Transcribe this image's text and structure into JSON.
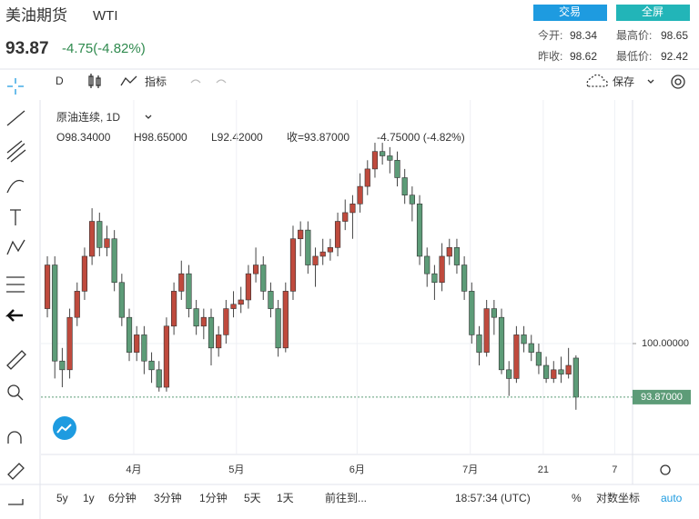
{
  "header": {
    "title": "美油期货",
    "symbol": "WTI",
    "price": "93.87",
    "change": "-4.75(-4.82%)",
    "buttons": [
      "交易",
      "全屏"
    ],
    "stats": [
      [
        "今开:",
        "98.34"
      ],
      [
        "最高价:",
        "98.65"
      ],
      [
        "昨收:",
        "98.62"
      ],
      [
        "最低价:",
        "92.42"
      ]
    ]
  },
  "toolbar": {
    "interval": "D",
    "indicators": "指标",
    "save": "保存"
  },
  "legend": {
    "name": "原油连续, 1D",
    "ohlc": [
      "O98.34000",
      "H98.65000",
      "L92.42000",
      "收=93.87000",
      "-4.75000 (-4.82%)"
    ]
  },
  "bottom": {
    "ranges": [
      "5y",
      "1y",
      "6分钟",
      "3分钟",
      "1分钟",
      "5天",
      "1天"
    ],
    "goto": "前往到...",
    "time": "18:57:34 (UTC)",
    "percent": "%",
    "log": "对数坐标",
    "auto": "auto"
  },
  "chart_data": {
    "type": "candlestick",
    "up_color": "#bf4a3d",
    "down_color": "#5d9c78",
    "grid": true,
    "xlim": [
      -0.86,
      78.6
    ],
    "ylim": [
      87.3,
      127.9
    ],
    "xticks": [
      {
        "value": 11.6,
        "label": "4月"
      },
      {
        "value": 25.4,
        "label": "5月"
      },
      {
        "value": 41.6,
        "label": "6月"
      },
      {
        "value": 56.8,
        "label": "7月"
      },
      {
        "value": 66.6,
        "label": "21"
      },
      {
        "value": 76.2,
        "label": "7"
      }
    ],
    "yticks": [
      {
        "value": 100,
        "label": "100.00000"
      }
    ],
    "last_price": {
      "value": 93.87,
      "label": "93.87000"
    },
    "open": [
      104,
      109,
      98,
      97,
      103,
      106,
      110,
      114,
      111,
      112,
      107,
      103,
      99,
      101,
      98,
      97,
      95,
      102,
      106,
      108,
      104,
      102,
      103,
      99.5,
      101,
      104,
      104.5,
      105,
      108,
      109,
      106,
      104,
      99.5,
      106,
      112,
      113,
      109,
      110,
      110.5,
      111,
      114,
      115,
      116,
      118,
      120,
      122,
      121.5,
      121,
      119,
      117,
      116,
      110,
      108,
      107,
      110,
      111,
      109,
      106,
      101,
      99,
      104,
      103,
      97,
      96,
      101,
      100,
      99,
      97.5,
      96,
      97,
      96.5,
      98.34
    ],
    "high": [
      110,
      110,
      99.5,
      104,
      107,
      111,
      115.5,
      115,
      113.5,
      113,
      108,
      104,
      102,
      102,
      99,
      98,
      103,
      107,
      109.5,
      109,
      105,
      104,
      104,
      102,
      105,
      106,
      106.5,
      109,
      111,
      110,
      107,
      105,
      107,
      113.5,
      114,
      114,
      111,
      112,
      112,
      115,
      116.5,
      117,
      119.5,
      121,
      123,
      123,
      122.5,
      122,
      120,
      118,
      117,
      111,
      109,
      111.5,
      112,
      112,
      110,
      107,
      102,
      105,
      105,
      104,
      98,
      102,
      102,
      101,
      100,
      98.5,
      98,
      98.5,
      99.5,
      98.65
    ],
    "low": [
      103,
      96,
      95,
      96,
      102,
      105,
      109,
      110,
      110,
      106,
      102,
      98,
      98,
      96.5,
      95.5,
      94.5,
      94.5,
      101,
      105,
      103,
      101,
      100.5,
      97.5,
      98.5,
      100,
      103,
      103.5,
      104,
      107,
      105,
      103,
      98.5,
      99,
      105,
      110,
      108,
      106.5,
      109,
      109.5,
      110,
      113,
      112,
      115,
      117,
      119,
      120.5,
      119.5,
      118,
      116,
      114,
      109,
      106.5,
      105,
      106,
      109,
      108,
      105,
      100,
      97.5,
      98.5,
      101,
      96.5,
      94,
      95.5,
      99,
      98,
      96.5,
      95.5,
      95.5,
      95.5,
      96,
      92.42
    ],
    "close": [
      109,
      98,
      97,
      103,
      106,
      110,
      114,
      111,
      112,
      107,
      103,
      99,
      101,
      98,
      97,
      95,
      102,
      106,
      108,
      104,
      102,
      103,
      99.5,
      101,
      104,
      104.5,
      105,
      108,
      109,
      106,
      104,
      99.5,
      106,
      112,
      113,
      109,
      110,
      110.5,
      111,
      114,
      115,
      116,
      118,
      120,
      122,
      121.5,
      121,
      119,
      117,
      116,
      110,
      108,
      107,
      110,
      111,
      109,
      106,
      101,
      99,
      104,
      103,
      97,
      96,
      101,
      100,
      99,
      97.5,
      96,
      97,
      96.5,
      97.5,
      93.87
    ]
  }
}
